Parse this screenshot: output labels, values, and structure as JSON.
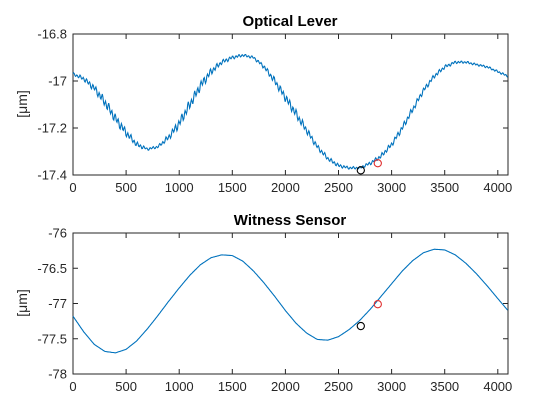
{
  "chart_data": [
    {
      "type": "line",
      "title": "Optical Lever",
      "xlabel": "",
      "ylabel": "[μm]",
      "xlim": [
        0,
        4096
      ],
      "ylim": [
        -17.4,
        -16.8
      ],
      "xticks": [
        0,
        500,
        1000,
        1500,
        2000,
        2500,
        3000,
        3500,
        4000
      ],
      "yticks": [
        -16.8,
        -17,
        -17.2,
        -17.4
      ],
      "ytick_labels": [
        "-16.8",
        "-17",
        "-17.2",
        "-17.4"
      ],
      "grid": false,
      "line_color": "#0072bd",
      "series": [
        {
          "x": [
            0,
            100,
            200,
            300,
            400,
            500,
            600,
            700,
            800,
            900,
            1000,
            1100,
            1200,
            1300,
            1400,
            1500,
            1600,
            1700,
            1800,
            1900,
            2000,
            2100,
            2200,
            2300,
            2400,
            2500,
            2600,
            2700,
            2800,
            2900,
            3000,
            3100,
            3200,
            3300,
            3400,
            3500,
            3600,
            3700,
            3800,
            3900,
            4000,
            4096
          ],
          "y": [
            -16.97,
            -16.99,
            -17.03,
            -17.09,
            -17.16,
            -17.22,
            -17.27,
            -17.29,
            -17.28,
            -17.24,
            -17.18,
            -17.1,
            -17.02,
            -16.96,
            -16.92,
            -16.9,
            -16.89,
            -16.9,
            -16.94,
            -17.0,
            -17.07,
            -17.14,
            -17.21,
            -17.28,
            -17.33,
            -17.36,
            -17.37,
            -17.37,
            -17.35,
            -17.32,
            -17.27,
            -17.2,
            -17.12,
            -17.04,
            -16.98,
            -16.94,
            -16.92,
            -16.92,
            -16.93,
            -16.94,
            -16.96,
            -16.98
          ],
          "noise": [
            0.006,
            0.01,
            0.016,
            0.022,
            0.022,
            0.018,
            0.012,
            0.006,
            0.006,
            0.014,
            0.022,
            0.024,
            0.022,
            0.016,
            0.01,
            0.008,
            0.006,
            0.006,
            0.01,
            0.016,
            0.02,
            0.02,
            0.016,
            0.012,
            0.01,
            0.008,
            0.006,
            0.006,
            0.008,
            0.01,
            0.012,
            0.014,
            0.014,
            0.012,
            0.01,
            0.008,
            0.006,
            0.005,
            0.005,
            0.005,
            0.005,
            0.005
          ]
        }
      ],
      "markers": [
        {
          "x": 2710,
          "y": -17.38,
          "color": "#000000"
        },
        {
          "x": 2870,
          "y": -17.35,
          "color": "#e03030"
        }
      ]
    },
    {
      "type": "line",
      "title": "Witness Sensor",
      "xlabel": "",
      "ylabel": "[μm]",
      "xlim": [
        0,
        4096
      ],
      "ylim": [
        -78,
        -76
      ],
      "xticks": [
        0,
        500,
        1000,
        1500,
        2000,
        2500,
        3000,
        3500,
        4000
      ],
      "yticks": [
        -76,
        -76.5,
        -77,
        -77.5,
        -78
      ],
      "ytick_labels": [
        "-76",
        "-76.5",
        "-77",
        "-77.5",
        "-78"
      ],
      "grid": false,
      "line_color": "#0072bd",
      "series": [
        {
          "x": [
            0,
            100,
            200,
            300,
            400,
            500,
            600,
            700,
            800,
            900,
            1000,
            1100,
            1200,
            1300,
            1400,
            1500,
            1600,
            1700,
            1800,
            1900,
            2000,
            2100,
            2200,
            2300,
            2400,
            2500,
            2600,
            2700,
            2800,
            2900,
            3000,
            3100,
            3200,
            3300,
            3400,
            3500,
            3600,
            3700,
            3800,
            3900,
            4000,
            4096
          ],
          "y": [
            -77.18,
            -77.4,
            -77.58,
            -77.68,
            -77.7,
            -77.65,
            -77.53,
            -77.36,
            -77.17,
            -76.97,
            -76.78,
            -76.6,
            -76.45,
            -76.35,
            -76.31,
            -76.32,
            -76.4,
            -76.54,
            -76.71,
            -76.9,
            -77.1,
            -77.28,
            -77.42,
            -77.51,
            -77.52,
            -77.47,
            -77.37,
            -77.24,
            -77.08,
            -76.9,
            -76.72,
            -76.54,
            -76.39,
            -76.28,
            -76.23,
            -76.24,
            -76.31,
            -76.43,
            -76.58,
            -76.75,
            -76.93,
            -77.1
          ],
          "noise": []
        }
      ],
      "markers": [
        {
          "x": 2710,
          "y": -77.32,
          "color": "#000000"
        },
        {
          "x": 2870,
          "y": -77.01,
          "color": "#e03030"
        }
      ]
    }
  ]
}
